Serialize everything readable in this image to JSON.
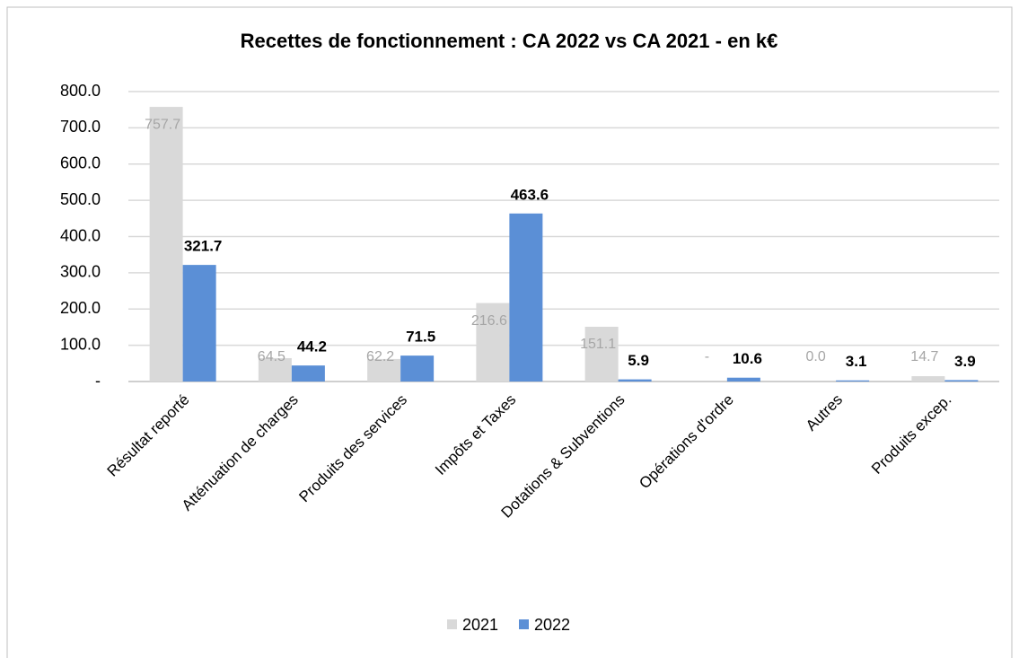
{
  "chart_data": {
    "type": "bar",
    "title": "Recettes de fonctionnement :  CA 2022 vs CA 2021 - en k€",
    "categories": [
      "Résultat reporté",
      "Atténuation de charges",
      "Produits des services",
      "Impôts et Taxes",
      "Dotations & Subventions",
      "Opérations d'ordre",
      "Autres",
      "Produits excep."
    ],
    "series": [
      {
        "name": "2021",
        "color": "#d9d9d9",
        "values": [
          757.7,
          64.5,
          62.2,
          216.6,
          151.1,
          0,
          0,
          14.7
        ],
        "value_labels": [
          "757.7",
          "64.5",
          "62.2",
          "216.6",
          "151.1",
          "-",
          "0.0",
          "14.7"
        ]
      },
      {
        "name": "2022",
        "color": "#5b8fd6",
        "values": [
          321.7,
          44.2,
          71.5,
          463.6,
          5.9,
          10.6,
          3.1,
          3.9
        ]
      }
    ],
    "ylim": [
      0,
      800
    ],
    "yticks": [
      {
        "value": 0,
        "label": "-"
      },
      {
        "value": 100,
        "label": "100.0"
      },
      {
        "value": 200,
        "label": "200.0"
      },
      {
        "value": 300,
        "label": "300.0"
      },
      {
        "value": 400,
        "label": "400.0"
      },
      {
        "value": 500,
        "label": "500.0"
      },
      {
        "value": 600,
        "label": "600.0"
      },
      {
        "value": 700,
        "label": "700.0"
      },
      {
        "value": 800,
        "label": "800.0"
      }
    ],
    "grid": true,
    "legend": "bottom"
  }
}
